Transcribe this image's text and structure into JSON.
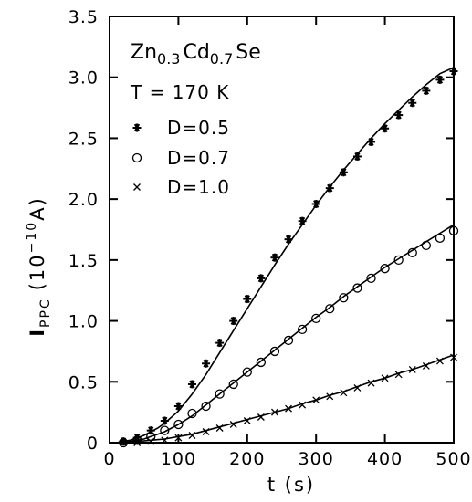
{
  "chart_data": {
    "type": "scatter",
    "title_parts": {
      "main": "Zn",
      "sub1": "0.3",
      "mid": "Cd",
      "sub2": "0.7",
      "end": "Se"
    },
    "temperature_label": "T = 170 K",
    "xlabel": "t (s)",
    "ylabel": {
      "main": "I",
      "sub": "PPC",
      "unit_open": "(10",
      "unit_sup": "−10",
      "unit_close": "A)"
    },
    "xlim": [
      0,
      500
    ],
    "ylim": [
      0,
      3.5
    ],
    "xticks": [
      0,
      100,
      200,
      300,
      400,
      500
    ],
    "xtick_labels": [
      "0",
      "100",
      "200",
      "300",
      "400",
      "500"
    ],
    "yticks": [
      0,
      0.5,
      1.0,
      1.5,
      2.0,
      2.5,
      3.0,
      3.5
    ],
    "ytick_labels": [
      "0",
      "0.5",
      "1.0",
      "1.5",
      "2.0",
      "2.5",
      "3.0",
      "3.5"
    ],
    "grid": false,
    "legend_position": "top-left",
    "series": [
      {
        "name": "D=0.5",
        "marker": "asterisk",
        "x": [
          20,
          40,
          60,
          80,
          100,
          120,
          140,
          160,
          180,
          200,
          220,
          240,
          260,
          280,
          300,
          320,
          340,
          360,
          380,
          400,
          420,
          440,
          460,
          480,
          500
        ],
        "y": [
          0.01,
          0.04,
          0.1,
          0.18,
          0.3,
          0.48,
          0.65,
          0.82,
          1.0,
          1.18,
          1.35,
          1.52,
          1.67,
          1.82,
          1.96,
          2.09,
          2.22,
          2.35,
          2.47,
          2.58,
          2.69,
          2.79,
          2.89,
          2.98,
          3.05
        ],
        "fit_x": [
          10,
          20,
          30,
          40,
          50,
          60,
          70,
          80,
          90,
          100,
          120,
          140,
          160,
          180,
          200,
          220,
          240,
          260,
          280,
          300,
          320,
          340,
          360,
          380,
          400,
          420,
          440,
          460,
          480,
          500
        ],
        "fit_y": [
          0.0,
          0.01,
          0.02,
          0.04,
          0.06,
          0.09,
          0.12,
          0.16,
          0.21,
          0.26,
          0.4,
          0.56,
          0.74,
          0.92,
          1.1,
          1.28,
          1.46,
          1.63,
          1.79,
          1.95,
          2.1,
          2.24,
          2.37,
          2.5,
          2.62,
          2.73,
          2.84,
          2.94,
          3.03,
          3.08
        ]
      },
      {
        "name": "D=0.7",
        "marker": "circle",
        "x": [
          20,
          40,
          60,
          80,
          100,
          120,
          140,
          160,
          180,
          200,
          220,
          240,
          260,
          280,
          300,
          320,
          340,
          360,
          380,
          400,
          420,
          440,
          460,
          480,
          500
        ],
        "y": [
          0.0,
          0.02,
          0.05,
          0.1,
          0.15,
          0.24,
          0.3,
          0.4,
          0.48,
          0.58,
          0.66,
          0.75,
          0.84,
          0.93,
          1.02,
          1.1,
          1.19,
          1.27,
          1.35,
          1.43,
          1.5,
          1.56,
          1.62,
          1.68,
          1.74
        ],
        "fit_x": [
          10,
          20,
          30,
          40,
          50,
          60,
          70,
          80,
          100,
          120,
          140,
          160,
          180,
          200,
          220,
          240,
          260,
          280,
          300,
          320,
          340,
          360,
          380,
          400,
          420,
          440,
          460,
          480,
          500
        ],
        "fit_y": [
          0.0,
          0.0,
          0.01,
          0.02,
          0.03,
          0.05,
          0.07,
          0.09,
          0.15,
          0.22,
          0.31,
          0.4,
          0.49,
          0.58,
          0.67,
          0.76,
          0.85,
          0.94,
          1.03,
          1.11,
          1.2,
          1.28,
          1.36,
          1.44,
          1.51,
          1.58,
          1.65,
          1.72,
          1.79
        ]
      },
      {
        "name": "D=1.0",
        "marker": "x",
        "x": [
          20,
          40,
          60,
          80,
          100,
          120,
          140,
          160,
          180,
          200,
          220,
          240,
          260,
          280,
          300,
          320,
          340,
          360,
          380,
          400,
          420,
          440,
          460,
          480,
          500
        ],
        "y": [
          0.0,
          0.0,
          0.01,
          0.02,
          0.04,
          0.06,
          0.09,
          0.12,
          0.15,
          0.18,
          0.21,
          0.25,
          0.28,
          0.31,
          0.35,
          0.38,
          0.41,
          0.45,
          0.49,
          0.53,
          0.56,
          0.6,
          0.63,
          0.67,
          0.7
        ],
        "fit_x": [
          10,
          20,
          30,
          40,
          60,
          80,
          100,
          120,
          140,
          160,
          180,
          200,
          220,
          240,
          260,
          280,
          300,
          320,
          340,
          360,
          380,
          400,
          420,
          440,
          460,
          480,
          500
        ],
        "fit_y": [
          0.0,
          0.0,
          0.0,
          0.01,
          0.02,
          0.03,
          0.05,
          0.07,
          0.1,
          0.13,
          0.16,
          0.19,
          0.22,
          0.25,
          0.28,
          0.32,
          0.35,
          0.39,
          0.42,
          0.46,
          0.5,
          0.53,
          0.57,
          0.6,
          0.64,
          0.68,
          0.72
        ]
      }
    ]
  }
}
